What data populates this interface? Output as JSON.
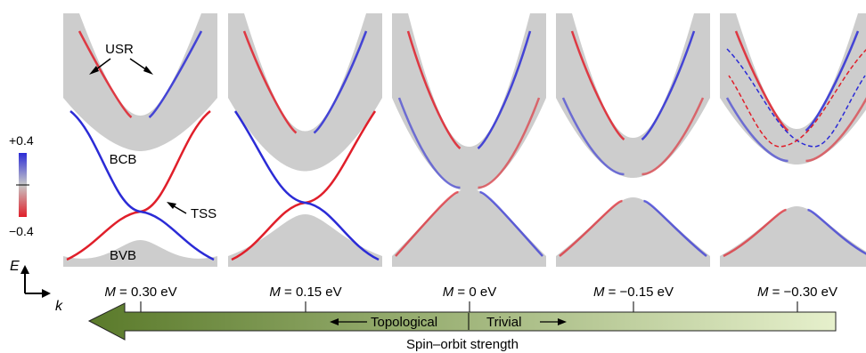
{
  "colorbar": {
    "max_label": "+0.4",
    "min_label": "−0.4",
    "top_color": "#2b2bd6",
    "mid_color": "#c8c8c8",
    "bottom_color": "#e01f2a"
  },
  "axes": {
    "e_label": "E",
    "k_label": "k"
  },
  "band_labels": {
    "usr": "USR",
    "bcb": "BCB",
    "bvb": "BVB",
    "tss": "TSS"
  },
  "panels": [
    {
      "m_symbol": "M",
      "m_value": " = 0.30 eV",
      "gap": -0.3
    },
    {
      "m_symbol": "M",
      "m_value": " = 0.15 eV",
      "gap": -0.15
    },
    {
      "m_symbol": "M",
      "m_value": " = 0 eV",
      "gap": 0.0
    },
    {
      "m_symbol": "M",
      "m_value": " = −0.15 eV",
      "gap": 0.15
    },
    {
      "m_symbol": "M",
      "m_value": " = −0.30 eV",
      "gap": 0.3
    }
  ],
  "arrow": {
    "topological": "Topological",
    "trivial": "Trivial",
    "caption": "Spin–orbit strength",
    "dark_color": "#5a7a2a",
    "light_color": "#e6f0cc"
  },
  "colors": {
    "band_fill": "#cdcdcd",
    "spin_up": "#2b2bd6",
    "spin_down": "#e01f2a"
  }
}
